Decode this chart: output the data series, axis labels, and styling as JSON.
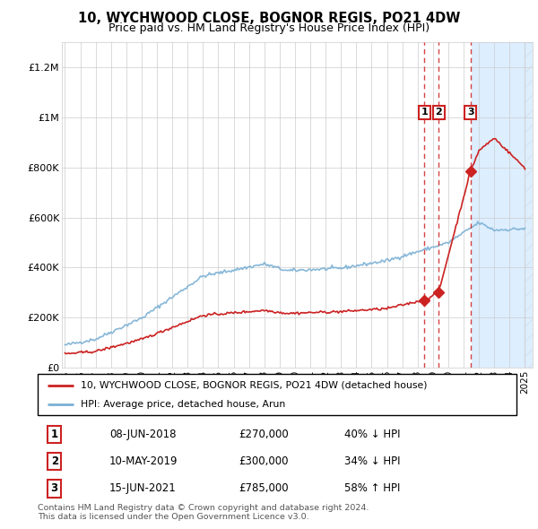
{
  "title": "10, WYCHWOOD CLOSE, BOGNOR REGIS, PO21 4DW",
  "subtitle": "Price paid vs. HM Land Registry's House Price Index (HPI)",
  "title_fontsize": 10.5,
  "subtitle_fontsize": 9,
  "ylabel_ticks": [
    "£0",
    "£200K",
    "£400K",
    "£600K",
    "£800K",
    "£1M",
    "£1.2M"
  ],
  "ytick_values": [
    0,
    200000,
    400000,
    600000,
    800000,
    1000000,
    1200000
  ],
  "ylim": [
    0,
    1300000
  ],
  "xlim_start": 1994.8,
  "xlim_end": 2025.5,
  "hpi_color": "#7ab0d4",
  "price_color": "#cc2222",
  "shade_color": "#ddeeff",
  "shade_start": 2021.5,
  "sale1_year": 2018.44,
  "sale1_price": 270000,
  "sale2_year": 2019.37,
  "sale2_price": 300000,
  "sale3_year": 2021.45,
  "sale3_price": 785000,
  "sales": [
    {
      "num": 1,
      "year": 2018.44,
      "price": 270000,
      "date": "08-JUN-2018",
      "pct": "40%",
      "dir": "↓"
    },
    {
      "num": 2,
      "year": 2019.37,
      "price": 300000,
      "date": "10-MAY-2019",
      "pct": "34%",
      "dir": "↓"
    },
    {
      "num": 3,
      "year": 2021.45,
      "price": 785000,
      "date": "15-JUN-2021",
      "pct": "58%",
      "dir": "↑"
    }
  ],
  "legend_property": "10, WYCHWOOD CLOSE, BOGNOR REGIS, PO21 4DW (detached house)",
  "legend_hpi": "HPI: Average price, detached house, Arun",
  "footnote": "Contains HM Land Registry data © Crown copyright and database right 2024.\nThis data is licensed under the Open Government Licence v3.0."
}
